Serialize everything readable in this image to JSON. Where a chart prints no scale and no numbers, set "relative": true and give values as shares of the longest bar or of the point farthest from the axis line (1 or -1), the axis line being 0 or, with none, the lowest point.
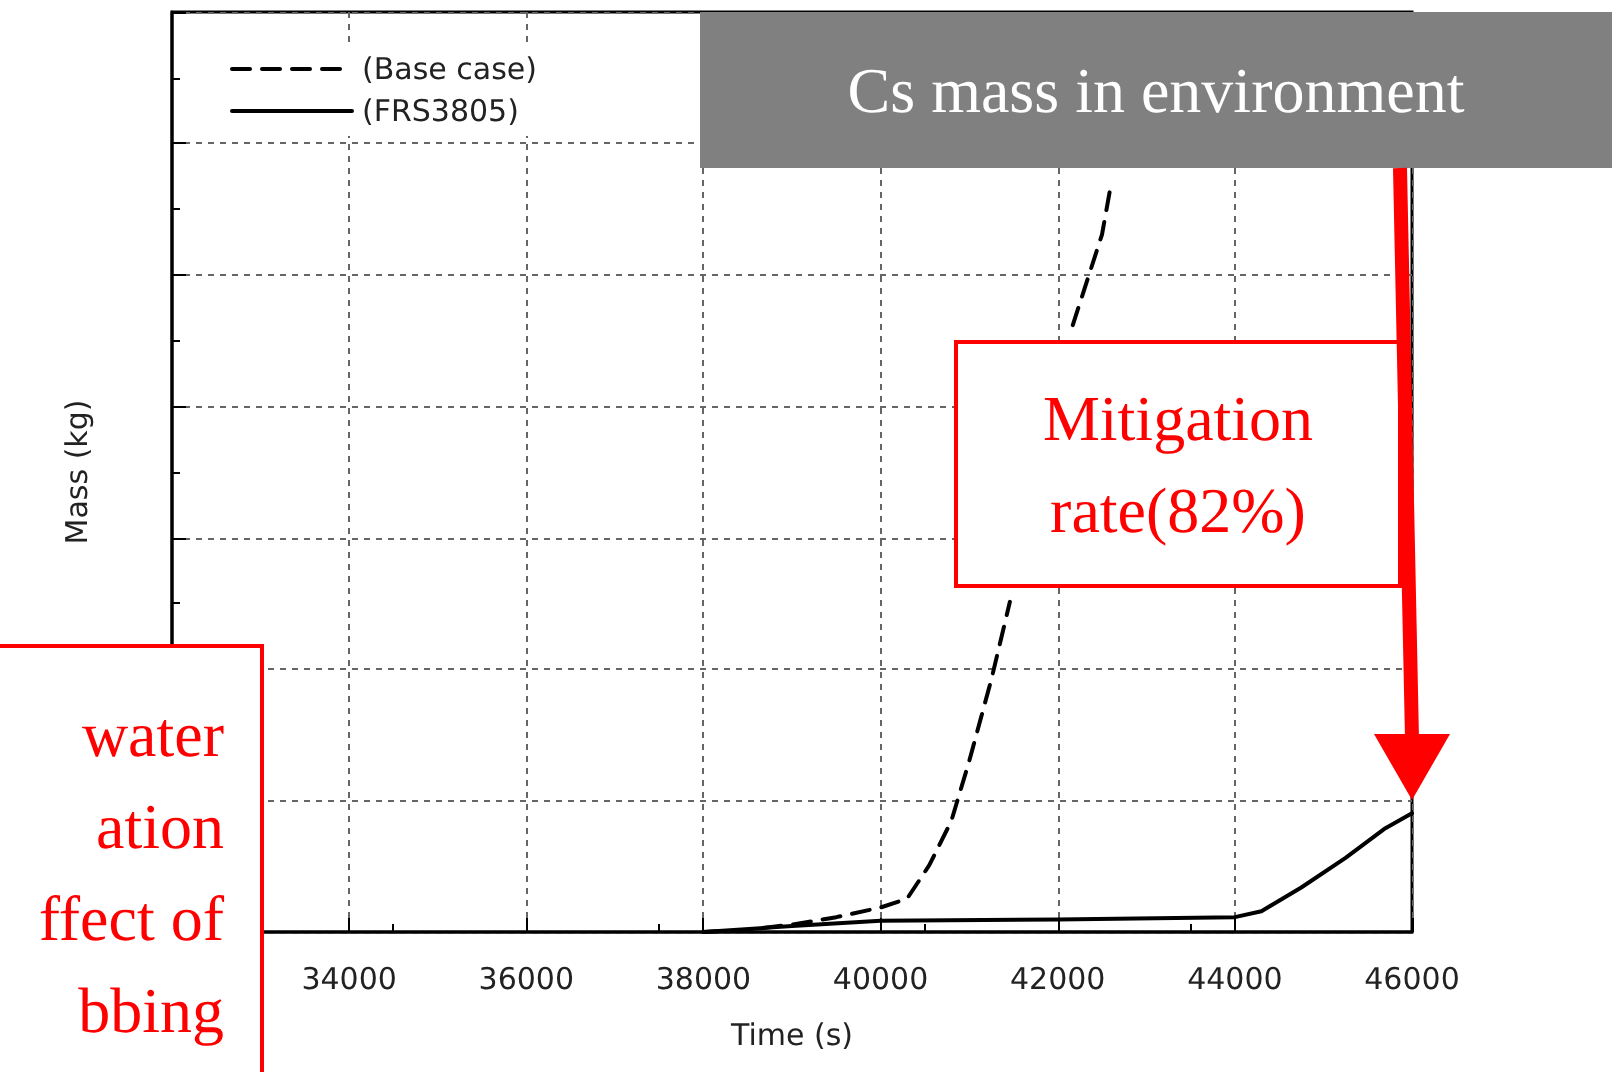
{
  "chart_data": {
    "type": "line",
    "title": "Cs mass in environment",
    "xlabel": "Time (s)",
    "ylabel": "Mass (kg)",
    "relative": true,
    "xlim": [
      32000,
      46000
    ],
    "xticks": [
      34000,
      36000,
      38000,
      40000,
      42000,
      44000,
      46000
    ],
    "grid": true,
    "legend": "top left",
    "marker": "none",
    "series": [
      {
        "name": "(Base case)",
        "color": "#000000",
        "line_style": "dashed",
        "x": [
          38000,
          38500,
          39000,
          39500,
          40000,
          40300,
          40550,
          40800,
          41000,
          41250,
          41460,
          41750,
          42000,
          42170,
          42500,
          42590
        ],
        "values": [
          0,
          0.003,
          0.01,
          0.02,
          0.033,
          0.045,
          0.09,
          0.15,
          0.23,
          0.34,
          0.445,
          null,
          null,
          0.818,
          0.94,
          1
        ]
      },
      {
        "name": "(FRS3805)",
        "color": "#000000",
        "line_style": "solid",
        "x": [
          38000,
          39000,
          40000,
          42000,
          44000,
          44300,
          44750,
          45250,
          45700,
          46000
        ],
        "values": [
          0,
          0.008,
          0.015,
          0.017,
          0.02,
          0.028,
          0.06,
          0.1,
          0.14,
          0.16
        ]
      }
    ],
    "annotations": [
      "Mitigation rate(82%)",
      "water\nation\nffect of\nbbing"
    ]
  }
}
